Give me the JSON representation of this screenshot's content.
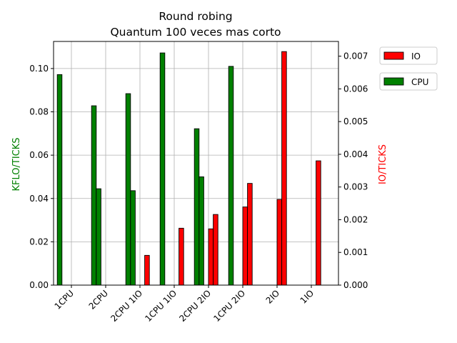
{
  "chart_data": {
    "type": "bar",
    "title": "Round robing",
    "subtitle": "Quantum 100 veces mas corto",
    "categories": [
      "1CPU",
      "2CPU",
      "2CPU 1IO",
      "1CPU 1IO",
      "2CPU 2IO",
      "1CPU 2IO",
      "2IO",
      "1IO"
    ],
    "ylabel_left": "KFLO/TICKS",
    "ylabel_right": "IO/TICKS",
    "ylim_left": [
      0,
      0.1125
    ],
    "ylim_right": [
      0,
      0.00745
    ],
    "yticks_left": [
      "0.00",
      "0.02",
      "0.04",
      "0.06",
      "0.08",
      "0.10"
    ],
    "yticks_right": [
      "0.000",
      "0.001",
      "0.002",
      "0.003",
      "0.004",
      "0.005",
      "0.006",
      "0.007"
    ],
    "grid": true,
    "legend": [
      {
        "label": "IO",
        "color": "#ff0000"
      },
      {
        "label": "CPU",
        "color": "#008000"
      }
    ],
    "legend_position": "outside-top-right",
    "colors": {
      "cpu": "#008000",
      "io": "#ff0000",
      "edge": "#000000",
      "grid": "#b0b0b0"
    },
    "series_cpu": [
      [
        0.0972,
        0
      ],
      [
        0.0828,
        0.0445
      ],
      [
        0.0884,
        0.0436
      ],
      [
        0.1072,
        0
      ],
      [
        0.0722,
        0.05
      ],
      [
        0.101,
        0
      ],
      [
        0,
        0
      ],
      [
        0,
        0
      ]
    ],
    "series_io": [
      [
        0,
        0
      ],
      [
        0,
        0
      ],
      [
        0,
        0.00091
      ],
      [
        0,
        0.00174
      ],
      [
        0.00172,
        0.00216
      ],
      [
        0.00239,
        0.00311
      ],
      [
        0.00262,
        0.00714
      ],
      [
        0,
        0.0038
      ]
    ]
  }
}
